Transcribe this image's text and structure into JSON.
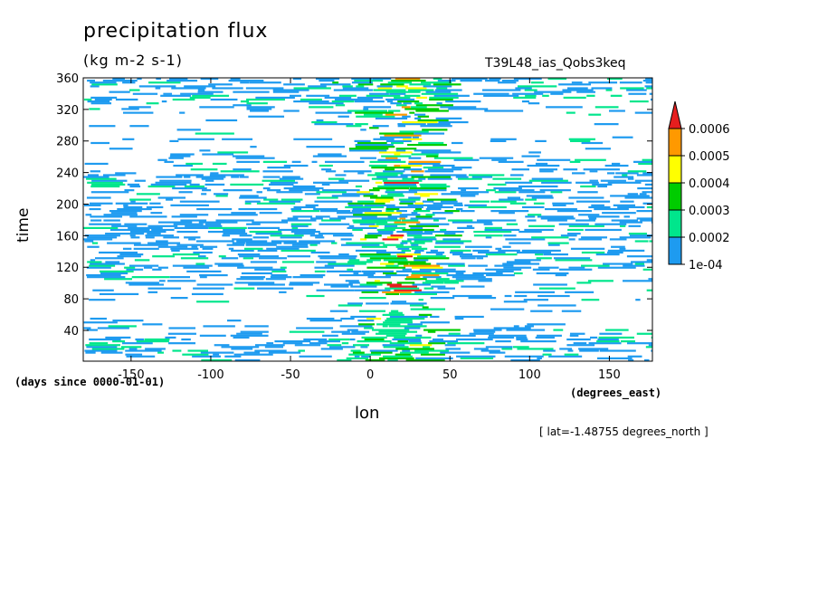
{
  "chart_data": {
    "type": "heatmap",
    "title": "precipitation flux",
    "units_label": "(kg m-2 s-1)",
    "run_label": "T39L48_ias_Qobs3keq",
    "xlabel": "lon",
    "ylabel": "time",
    "x_units": "(degrees_east)",
    "y_units": "(days since 0000-01-01)",
    "slice_note": "[ lat=-1.48755 degrees_north ]",
    "xlim": [
      -180,
      177
    ],
    "ylim": [
      1,
      360
    ],
    "x_ticks": [
      -150,
      -100,
      -50,
      0,
      50,
      100,
      150
    ],
    "x_tick_labels": [
      "-150",
      "-100",
      "-50",
      "0",
      "50",
      "100",
      "150"
    ],
    "y_ticks": [
      40,
      80,
      120,
      160,
      200,
      240,
      280,
      320,
      360
    ],
    "y_tick_labels": [
      "40",
      "80",
      "120",
      "160",
      "200",
      "240",
      "280",
      "320",
      "360"
    ],
    "levels": [
      0.0001,
      0.0002,
      0.0003,
      0.0004,
      0.0005,
      0.0006
    ],
    "level_labels": [
      "1e-04",
      "0.0002",
      "0.0003",
      "0.0004",
      "0.0005",
      "0.0006"
    ],
    "level_colors": [
      "#1e9bf0",
      "#00e68c",
      "#00cc00",
      "#ffff00",
      "#ff9900",
      "#e61e1e"
    ],
    "colorbar_extend": "max",
    "grid": false,
    "description_of_field": "zonally streaky convective precipitation, enhanced near lon 0 to 30"
  }
}
